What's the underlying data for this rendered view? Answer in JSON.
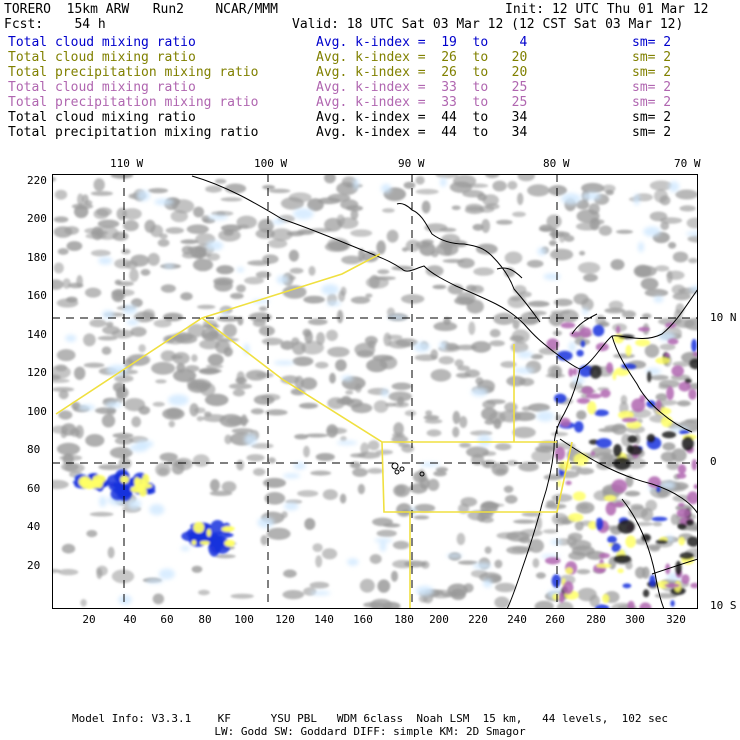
{
  "header": {
    "model": "TORERO  15km ARW   Run2    NCAR/MMM",
    "init": "Init: 12 UTC Thu 01 Mar 12",
    "fcst": "Fcst:    54 h",
    "valid": "Valid: 18 UTC Sat 03 Mar 12 (12 CST Sat 03 Mar 12)"
  },
  "legend": [
    {
      "label": "Total cloud mixing ratio",
      "range": "Avg. k-index =  19  to    4",
      "sm": "sm= 2",
      "color": "#0000cc"
    },
    {
      "label": "Total cloud mixing ratio",
      "range": "Avg. k-index =  26  to   20",
      "sm": "sm= 2",
      "color": "#808000"
    },
    {
      "label": "Total precipitation mixing ratio",
      "range": "Avg. k-index =  26  to   20",
      "sm": "sm= 2",
      "color": "#808000"
    },
    {
      "label": "Total cloud mixing ratio",
      "range": "Avg. k-index =  33  to   25",
      "sm": "sm= 2",
      "color": "#b066b0"
    },
    {
      "label": "Total precipitation mixing ratio",
      "range": "Avg. k-index =  33  to   25",
      "sm": "sm= 2",
      "color": "#b066b0"
    },
    {
      "label": "Total cloud mixing ratio",
      "range": "Avg. k-index =  44  to   34",
      "sm": "sm= 2",
      "color": "#000000"
    },
    {
      "label": "Total precipitation mixing ratio",
      "range": "Avg. k-index =  44  to   34",
      "sm": "sm= 2",
      "color": "#000000"
    }
  ],
  "map": {
    "y_ticks": [
      "220",
      "200",
      "180",
      "160",
      "140",
      "120",
      "100",
      "80",
      "60",
      "40",
      "20"
    ],
    "x_ticks": [
      "20",
      "40",
      "60",
      "80",
      "100",
      "120",
      "140",
      "160",
      "180",
      "200",
      "220",
      "240",
      "260",
      "280",
      "300",
      "320"
    ],
    "lon_labels": [
      "110 W",
      "100 W",
      "90 W",
      "80 W",
      "70 W"
    ],
    "lat_labels": [
      "10 N",
      "0",
      "10 S"
    ],
    "colors": {
      "cloud_gray": "#9a9a9a",
      "light_blue": "#cfe8ff",
      "blue": "#1a33dd",
      "yellow": "#ffff66",
      "purple": "#b066b0",
      "black": "#222222",
      "domain_line": "#f0e040"
    }
  },
  "footer": {
    "line1": "Model Info: V3.3.1    KF      YSU PBL   WDM 6class  Noah LSM  15 km,   44 levels,  102 sec",
    "line2": "LW: Godd SW: Goddard DIFF: simple KM: 2D Smagor"
  }
}
